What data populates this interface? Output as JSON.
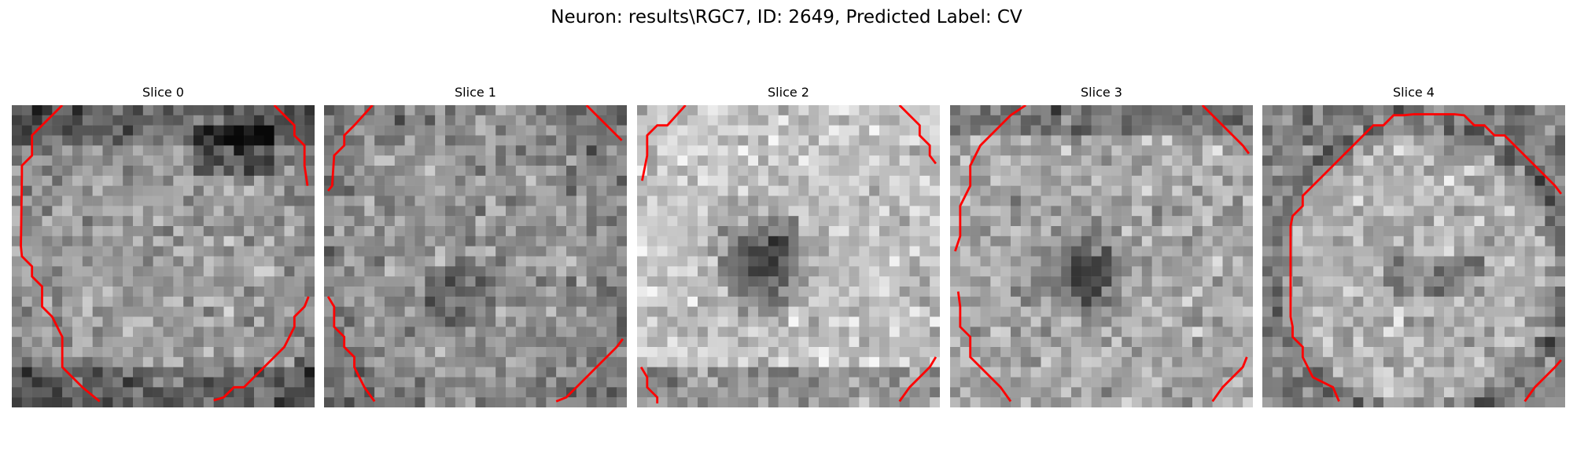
{
  "figure": {
    "suptitle": "Neuron: results\\RGC7, ID: 2649, Predicted Label: CV"
  },
  "panels": [
    {
      "title": "Slice 0"
    },
    {
      "title": "Slice 1"
    },
    {
      "title": "Slice 2"
    },
    {
      "title": "Slice 3"
    },
    {
      "title": "Slice 4"
    }
  ],
  "colors": {
    "contour": "#ff0000",
    "background": "#ffffff",
    "colormap": "gray"
  }
}
